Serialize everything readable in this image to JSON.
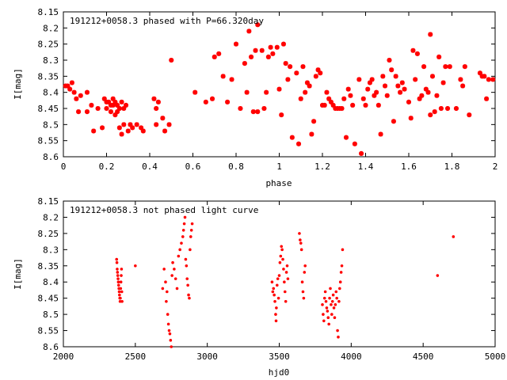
{
  "chart_data": [
    {
      "type": "scatter",
      "title": "191212+0058.3 phased with P=66.320day",
      "xlabel": "phase",
      "ylabel": "I[mag]",
      "xlim": [
        0,
        2
      ],
      "ylim": [
        8.6,
        8.15
      ],
      "y_inverted": true,
      "grid": false,
      "marker": "asterisk",
      "color": "#ff0000",
      "x_ticks": [
        "0",
        "0.2",
        "0.4",
        "0.6",
        "0.8",
        "1",
        "1.2",
        "1.4",
        "1.6",
        "1.8",
        "2"
      ],
      "y_ticks": [
        "8.15",
        "8.2",
        "8.25",
        "8.3",
        "8.35",
        "8.4",
        "8.45",
        "8.5",
        "8.55",
        "8.6"
      ],
      "points": [
        [
          0.01,
          8.38
        ],
        [
          0.02,
          8.38
        ],
        [
          0.03,
          8.39
        ],
        [
          0.04,
          8.37
        ],
        [
          0.05,
          8.4
        ],
        [
          0.06,
          8.42
        ],
        [
          0.07,
          8.46
        ],
        [
          0.08,
          8.41
        ],
        [
          0.11,
          8.46
        ],
        [
          0.11,
          8.4
        ],
        [
          0.13,
          8.44
        ],
        [
          0.14,
          8.52
        ],
        [
          0.16,
          8.45
        ],
        [
          0.18,
          8.51
        ],
        [
          0.19,
          8.42
        ],
        [
          0.2,
          8.43
        ],
        [
          0.2,
          8.45
        ],
        [
          0.21,
          8.43
        ],
        [
          0.22,
          8.44
        ],
        [
          0.22,
          8.46
        ],
        [
          0.23,
          8.42
        ],
        [
          0.23,
          8.44
        ],
        [
          0.24,
          8.47
        ],
        [
          0.24,
          8.43
        ],
        [
          0.25,
          8.44
        ],
        [
          0.25,
          8.46
        ],
        [
          0.26,
          8.45
        ],
        [
          0.26,
          8.51
        ],
        [
          0.27,
          8.43
        ],
        [
          0.27,
          8.53
        ],
        [
          0.28,
          8.45
        ],
        [
          0.28,
          8.5
        ],
        [
          0.29,
          8.44
        ],
        [
          0.3,
          8.52
        ],
        [
          0.31,
          8.5
        ],
        [
          0.32,
          8.51
        ],
        [
          0.34,
          8.5
        ],
        [
          0.36,
          8.51
        ],
        [
          0.37,
          8.52
        ],
        [
          0.42,
          8.42
        ],
        [
          0.43,
          8.45
        ],
        [
          0.43,
          8.5
        ],
        [
          0.44,
          8.43
        ],
        [
          0.46,
          8.48
        ],
        [
          0.47,
          8.52
        ],
        [
          0.49,
          8.5
        ],
        [
          0.5,
          8.3
        ],
        [
          0.61,
          8.4
        ],
        [
          0.66,
          8.43
        ],
        [
          0.69,
          8.42
        ],
        [
          0.7,
          8.29
        ],
        [
          0.72,
          8.28
        ],
        [
          0.74,
          8.35
        ],
        [
          0.76,
          8.43
        ],
        [
          0.78,
          8.36
        ],
        [
          0.8,
          8.25
        ],
        [
          0.82,
          8.45
        ],
        [
          0.84,
          8.31
        ],
        [
          0.85,
          8.4
        ],
        [
          0.86,
          8.21
        ],
        [
          0.87,
          8.29
        ],
        [
          0.88,
          8.46
        ],
        [
          0.89,
          8.27
        ],
        [
          0.9,
          8.19
        ],
        [
          0.9,
          8.46
        ],
        [
          0.92,
          8.27
        ],
        [
          0.93,
          8.45
        ],
        [
          0.94,
          8.4
        ],
        [
          0.95,
          8.29
        ],
        [
          0.96,
          8.26
        ],
        [
          0.97,
          8.28
        ],
        [
          0.99,
          8.26
        ],
        [
          1.0,
          8.39
        ],
        [
          1.01,
          8.47
        ],
        [
          1.02,
          8.25
        ],
        [
          1.03,
          8.31
        ],
        [
          1.04,
          8.36
        ],
        [
          1.05,
          8.32
        ],
        [
          1.06,
          8.54
        ],
        [
          1.08,
          8.34
        ],
        [
          1.09,
          8.56
        ],
        [
          1.1,
          8.42
        ],
        [
          1.11,
          8.32
        ],
        [
          1.12,
          8.4
        ],
        [
          1.13,
          8.37
        ],
        [
          1.14,
          8.38
        ],
        [
          1.15,
          8.53
        ],
        [
          1.16,
          8.49
        ],
        [
          1.17,
          8.35
        ],
        [
          1.18,
          8.33
        ],
        [
          1.19,
          8.34
        ],
        [
          1.2,
          8.44
        ],
        [
          1.21,
          8.44
        ],
        [
          1.22,
          8.4
        ],
        [
          1.23,
          8.42
        ],
        [
          1.24,
          8.43
        ],
        [
          1.25,
          8.44
        ],
        [
          1.26,
          8.45
        ],
        [
          1.27,
          8.45
        ],
        [
          1.28,
          8.45
        ],
        [
          1.29,
          8.45
        ],
        [
          1.3,
          8.42
        ],
        [
          1.31,
          8.54
        ],
        [
          1.32,
          8.39
        ],
        [
          1.33,
          8.41
        ],
        [
          1.34,
          8.44
        ],
        [
          1.35,
          8.56
        ],
        [
          1.37,
          8.36
        ],
        [
          1.38,
          8.59
        ],
        [
          1.39,
          8.42
        ],
        [
          1.4,
          8.44
        ],
        [
          1.41,
          8.39
        ],
        [
          1.42,
          8.37
        ],
        [
          1.43,
          8.36
        ],
        [
          1.44,
          8.41
        ],
        [
          1.45,
          8.4
        ],
        [
          1.46,
          8.44
        ],
        [
          1.47,
          8.53
        ],
        [
          1.48,
          8.35
        ],
        [
          1.49,
          8.38
        ],
        [
          1.5,
          8.41
        ],
        [
          1.51,
          8.3
        ],
        [
          1.52,
          8.33
        ],
        [
          1.53,
          8.49
        ],
        [
          1.54,
          8.35
        ],
        [
          1.55,
          8.38
        ],
        [
          1.56,
          8.4
        ],
        [
          1.57,
          8.37
        ],
        [
          1.58,
          8.39
        ],
        [
          1.6,
          8.43
        ],
        [
          1.61,
          8.48
        ],
        [
          1.62,
          8.27
        ],
        [
          1.63,
          8.36
        ],
        [
          1.64,
          8.28
        ],
        [
          1.65,
          8.42
        ],
        [
          1.66,
          8.41
        ],
        [
          1.67,
          8.32
        ],
        [
          1.68,
          8.39
        ],
        [
          1.69,
          8.4
        ],
        [
          1.7,
          8.22
        ],
        [
          1.7,
          8.47
        ],
        [
          1.71,
          8.35
        ],
        [
          1.72,
          8.46
        ],
        [
          1.73,
          8.41
        ],
        [
          1.74,
          8.29
        ],
        [
          1.75,
          8.45
        ],
        [
          1.76,
          8.37
        ],
        [
          1.77,
          8.32
        ],
        [
          1.78,
          8.45
        ],
        [
          1.79,
          8.32
        ],
        [
          1.82,
          8.45
        ],
        [
          1.84,
          8.36
        ],
        [
          1.85,
          8.38
        ],
        [
          1.86,
          8.32
        ],
        [
          1.88,
          8.47
        ],
        [
          1.93,
          8.34
        ],
        [
          1.94,
          8.35
        ],
        [
          1.95,
          8.35
        ],
        [
          1.96,
          8.42
        ],
        [
          1.97,
          8.36
        ],
        [
          1.99,
          8.36
        ]
      ]
    },
    {
      "type": "scatter",
      "title": "191212+0058.3 not phased light curve",
      "xlabel": "hjd0",
      "ylabel": "I[mag]",
      "xlim": [
        2000,
        5000
      ],
      "ylim": [
        8.6,
        8.15
      ],
      "y_inverted": true,
      "grid": false,
      "marker": "dot",
      "color": "#ff0000",
      "x_ticks": [
        "2000",
        "2500",
        "3000",
        "3500",
        "4000",
        "4500",
        "5000"
      ],
      "y_ticks": [
        "8.15",
        "8.2",
        "8.25",
        "8.3",
        "8.35",
        "8.4",
        "8.45",
        "8.5",
        "8.55",
        "8.6"
      ],
      "points": [
        [
          2370,
          8.33
        ],
        [
          2372,
          8.34
        ],
        [
          2374,
          8.36
        ],
        [
          2376,
          8.37
        ],
        [
          2378,
          8.38
        ],
        [
          2380,
          8.39
        ],
        [
          2382,
          8.4
        ],
        [
          2384,
          8.41
        ],
        [
          2386,
          8.42
        ],
        [
          2388,
          8.43
        ],
        [
          2390,
          8.44
        ],
        [
          2392,
          8.45
        ],
        [
          2394,
          8.46
        ],
        [
          2396,
          8.45
        ],
        [
          2398,
          8.42
        ],
        [
          2400,
          8.4
        ],
        [
          2402,
          8.38
        ],
        [
          2404,
          8.36
        ],
        [
          2406,
          8.43
        ],
        [
          2408,
          8.46
        ],
        [
          2500,
          8.35
        ],
        [
          2690,
          8.42
        ],
        [
          2700,
          8.36
        ],
        [
          2710,
          8.4
        ],
        [
          2715,
          8.46
        ],
        [
          2720,
          8.43
        ],
        [
          2725,
          8.5
        ],
        [
          2730,
          8.53
        ],
        [
          2735,
          8.55
        ],
        [
          2740,
          8.56
        ],
        [
          2745,
          8.58
        ],
        [
          2750,
          8.6
        ],
        [
          2755,
          8.38
        ],
        [
          2760,
          8.34
        ],
        [
          2770,
          8.36
        ],
        [
          2780,
          8.39
        ],
        [
          2790,
          8.42
        ],
        [
          2800,
          8.32
        ],
        [
          2810,
          8.3
        ],
        [
          2820,
          8.28
        ],
        [
          2830,
          8.26
        ],
        [
          2835,
          8.24
        ],
        [
          2840,
          8.22
        ],
        [
          2845,
          8.2
        ],
        [
          2850,
          8.33
        ],
        [
          2855,
          8.35
        ],
        [
          2860,
          8.39
        ],
        [
          2865,
          8.41
        ],
        [
          2870,
          8.44
        ],
        [
          2875,
          8.45
        ],
        [
          2880,
          8.3
        ],
        [
          2885,
          8.26
        ],
        [
          2890,
          8.24
        ],
        [
          2895,
          8.22
        ],
        [
          3450,
          8.4
        ],
        [
          3455,
          8.43
        ],
        [
          3460,
          8.42
        ],
        [
          3465,
          8.44
        ],
        [
          3470,
          8.46
        ],
        [
          3475,
          8.5
        ],
        [
          3478,
          8.52
        ],
        [
          3480,
          8.48
        ],
        [
          3485,
          8.41
        ],
        [
          3490,
          8.39
        ],
        [
          3495,
          8.45
        ],
        [
          3500,
          8.38
        ],
        [
          3505,
          8.34
        ],
        [
          3510,
          8.32
        ],
        [
          3515,
          8.29
        ],
        [
          3520,
          8.3
        ],
        [
          3525,
          8.33
        ],
        [
          3530,
          8.36
        ],
        [
          3535,
          8.4
        ],
        [
          3540,
          8.43
        ],
        [
          3545,
          8.46
        ],
        [
          3550,
          8.37
        ],
        [
          3555,
          8.35
        ],
        [
          3560,
          8.39
        ],
        [
          3640,
          8.25
        ],
        [
          3645,
          8.27
        ],
        [
          3650,
          8.28
        ],
        [
          3655,
          8.3
        ],
        [
          3660,
          8.4
        ],
        [
          3665,
          8.43
        ],
        [
          3670,
          8.45
        ],
        [
          3675,
          8.37
        ],
        [
          3680,
          8.35
        ],
        [
          3800,
          8.47
        ],
        [
          3805,
          8.5
        ],
        [
          3810,
          8.52
        ],
        [
          3815,
          8.45
        ],
        [
          3820,
          8.43
        ],
        [
          3825,
          8.46
        ],
        [
          3830,
          8.48
        ],
        [
          3835,
          8.49
        ],
        [
          3840,
          8.51
        ],
        [
          3845,
          8.53
        ],
        [
          3850,
          8.45
        ],
        [
          3855,
          8.42
        ],
        [
          3860,
          8.47
        ],
        [
          3865,
          8.5
        ],
        [
          3870,
          8.46
        ],
        [
          3875,
          8.44
        ],
        [
          3880,
          8.48
        ],
        [
          3885,
          8.51
        ],
        [
          3890,
          8.47
        ],
        [
          3895,
          8.43
        ],
        [
          3900,
          8.45
        ],
        [
          3905,
          8.55
        ],
        [
          3910,
          8.57
        ],
        [
          3915,
          8.46
        ],
        [
          3920,
          8.42
        ],
        [
          3925,
          8.4
        ],
        [
          3930,
          8.37
        ],
        [
          3935,
          8.35
        ],
        [
          3940,
          8.3
        ],
        [
          4600,
          8.38
        ],
        [
          4710,
          8.26
        ]
      ]
    }
  ]
}
